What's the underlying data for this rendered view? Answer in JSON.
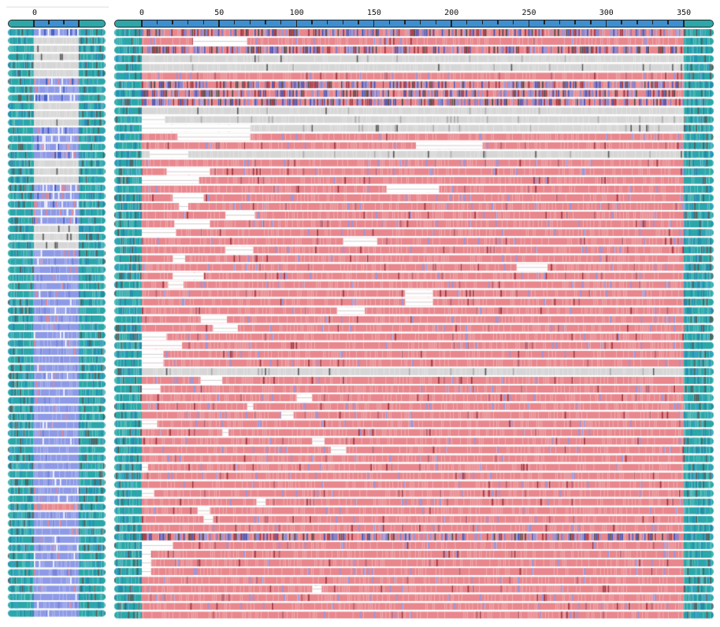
{
  "overview_panel": {
    "axis_labels": [
      "0"
    ],
    "row_count": 72
  },
  "alignment_panel": {
    "axis_labels": [
      "0",
      "50",
      "100",
      "150",
      "200",
      "250",
      "300",
      "350"
    ],
    "axis_range": [
      0,
      350
    ],
    "row_count": 68,
    "rows": [
      {
        "kind": "mixed",
        "gaps": []
      },
      {
        "kind": "pink",
        "gaps": [
          [
            33,
            68
          ]
        ]
      },
      {
        "kind": "mixed",
        "gaps": []
      },
      {
        "kind": "gray",
        "gaps": []
      },
      {
        "kind": "gray",
        "gaps": []
      },
      {
        "kind": "pink",
        "gaps": []
      },
      {
        "kind": "mixed",
        "gaps": []
      },
      {
        "kind": "mixed",
        "gaps": []
      },
      {
        "kind": "mixed",
        "gaps": []
      },
      {
        "kind": "gray",
        "gaps": []
      },
      {
        "kind": "pinkgray",
        "gaps": [
          [
            0,
            15
          ]
        ]
      },
      {
        "kind": "gray",
        "gaps": [
          [
            0,
            70
          ]
        ]
      },
      {
        "kind": "pink",
        "gaps": [
          [
            23,
            70
          ]
        ]
      },
      {
        "kind": "pink",
        "gaps": [
          [
            177,
            220
          ]
        ]
      },
      {
        "kind": "gray",
        "gaps": [
          [
            5,
            30
          ]
        ]
      },
      {
        "kind": "pink",
        "gaps": []
      },
      {
        "kind": "pink",
        "gaps": [
          [
            16,
            44
          ]
        ]
      },
      {
        "kind": "pink",
        "gaps": [
          [
            0,
            37
          ]
        ]
      },
      {
        "kind": "pink",
        "gaps": [
          [
            158,
            192
          ]
        ]
      },
      {
        "kind": "pink",
        "gaps": [
          [
            20,
            40
          ]
        ]
      },
      {
        "kind": "pink",
        "gaps": [
          [
            24,
            30
          ]
        ]
      },
      {
        "kind": "pink",
        "gaps": [
          [
            54,
            73
          ]
        ]
      },
      {
        "kind": "pink",
        "gaps": [
          [
            21,
            44
          ]
        ]
      },
      {
        "kind": "pink",
        "gaps": [
          [
            0,
            22
          ]
        ]
      },
      {
        "kind": "pink",
        "gaps": [
          [
            130,
            152
          ]
        ]
      },
      {
        "kind": "pink",
        "gaps": [
          [
            54,
            72
          ]
        ]
      },
      {
        "kind": "pink",
        "gaps": [
          [
            20,
            28
          ]
        ]
      },
      {
        "kind": "pink",
        "gaps": [
          [
            242,
            262
          ]
        ]
      },
      {
        "kind": "pink",
        "gaps": [
          [
            20,
            40
          ]
        ]
      },
      {
        "kind": "pink",
        "gaps": [
          [
            17,
            27
          ]
        ]
      },
      {
        "kind": "pink",
        "gaps": [
          [
            170,
            188
          ]
        ]
      },
      {
        "kind": "pink",
        "gaps": [
          [
            170,
            188
          ]
        ]
      },
      {
        "kind": "pink",
        "gaps": [
          [
            126,
            144
          ]
        ]
      },
      {
        "kind": "pink",
        "gaps": [
          [
            38,
            55
          ]
        ]
      },
      {
        "kind": "pink",
        "gaps": [
          [
            46,
            62
          ]
        ]
      },
      {
        "kind": "pink",
        "gaps": [
          [
            0,
            16
          ]
        ]
      },
      {
        "kind": "pink",
        "gaps": [
          [
            0,
            26
          ]
        ]
      },
      {
        "kind": "pink",
        "gaps": [
          [
            0,
            14
          ]
        ]
      },
      {
        "kind": "pink",
        "gaps": [
          [
            0,
            14
          ]
        ]
      },
      {
        "kind": "gray",
        "gaps": []
      },
      {
        "kind": "pink",
        "gaps": [
          [
            38,
            52
          ]
        ]
      },
      {
        "kind": "pink",
        "gaps": [
          [
            0,
            12
          ]
        ]
      },
      {
        "kind": "pink",
        "gaps": [
          [
            100,
            110
          ]
        ]
      },
      {
        "kind": "pink",
        "gaps": [
          [
            68,
            72
          ]
        ]
      },
      {
        "kind": "pink",
        "gaps": [
          [
            90,
            98
          ]
        ]
      },
      {
        "kind": "pink",
        "gaps": [
          [
            0,
            10
          ]
        ]
      },
      {
        "kind": "pink",
        "gaps": [
          [
            52,
            56
          ]
        ]
      },
      {
        "kind": "pink",
        "gaps": [
          [
            110,
            118
          ]
        ]
      },
      {
        "kind": "pink",
        "gaps": [
          [
            122,
            132
          ]
        ]
      },
      {
        "kind": "pink",
        "gaps": []
      },
      {
        "kind": "pink",
        "gaps": [
          [
            0,
            4
          ]
        ]
      },
      {
        "kind": "pink",
        "gaps": []
      },
      {
        "kind": "pink",
        "gaps": []
      },
      {
        "kind": "pink",
        "gaps": [
          [
            0,
            8
          ]
        ]
      },
      {
        "kind": "pink",
        "gaps": [
          [
            74,
            80
          ]
        ]
      },
      {
        "kind": "pink",
        "gaps": [
          [
            36,
            44
          ]
        ]
      },
      {
        "kind": "pink",
        "gaps": [
          [
            40,
            46
          ]
        ]
      },
      {
        "kind": "pink",
        "gaps": []
      },
      {
        "kind": "mixed",
        "gaps": []
      },
      {
        "kind": "pink",
        "gaps": [
          [
            0,
            20
          ]
        ]
      },
      {
        "kind": "pink",
        "gaps": [
          [
            0,
            6
          ]
        ]
      },
      {
        "kind": "pink",
        "gaps": [
          [
            0,
            6
          ]
        ]
      },
      {
        "kind": "pink",
        "gaps": [
          [
            0,
            6
          ]
        ]
      },
      {
        "kind": "pink",
        "gaps": []
      },
      {
        "kind": "pink",
        "gaps": [
          [
            110,
            116
          ]
        ]
      },
      {
        "kind": "pink",
        "gaps": []
      },
      {
        "kind": "pink",
        "gaps": []
      },
      {
        "kind": "pink",
        "gaps": []
      }
    ]
  },
  "colors": {
    "teal": "#2aa7a8",
    "blue": "#8e9ae6",
    "dark_blue": "#3550b8",
    "pink": "#e8878d",
    "dark_red": "#9a2f3a",
    "gray": "#d6d6d6",
    "dark_gray": "#555555",
    "ruler_blue": "#3d8fd0"
  }
}
